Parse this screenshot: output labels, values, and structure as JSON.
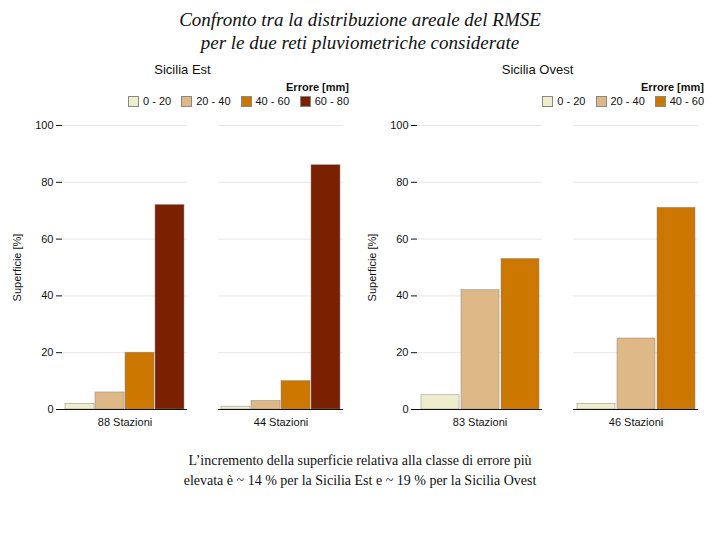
{
  "title": "Confronto tra la distribuzione areale del RMSE\nper le due reti pluviometriche considerate",
  "caption": "L’incremento della superficie relativa alla classe di errore più\nelevata è ~ 14 % per la Sicilia Est e ~ 19 % per la Sicilia Ovest",
  "chart_data": [
    {
      "type": "bar",
      "title": "Sicilia Est",
      "categories": [
        "88 Stazioni",
        "44 Stazioni"
      ],
      "series": [
        {
          "name": "0 - 20",
          "color": "#EEEECC",
          "values": [
            2,
            1
          ]
        },
        {
          "name": "20 - 40",
          "color": "#DEB887",
          "values": [
            6,
            3
          ]
        },
        {
          "name": "40 - 60",
          "color": "#CC7700",
          "values": [
            20,
            10
          ]
        },
        {
          "name": "60 - 80",
          "color": "#7B2000",
          "values": [
            72,
            86
          ]
        }
      ],
      "ylabel": "Superficie [%]",
      "ylim": [
        0,
        100
      ],
      "yticks": [
        0,
        20,
        40,
        60,
        80,
        100
      ],
      "grid": true,
      "legend": "upper right",
      "legend_title": "Errore [mm]"
    },
    {
      "type": "bar",
      "title": "Sicilia Ovest",
      "categories": [
        "83 Stazioni",
        "46 Stazioni"
      ],
      "series": [
        {
          "name": "0 - 20",
          "color": "#EEEECC",
          "values": [
            5,
            2
          ]
        },
        {
          "name": "20 - 40",
          "color": "#DEB887",
          "values": [
            42,
            25
          ]
        },
        {
          "name": "40 - 60",
          "color": "#CC7700",
          "values": [
            53,
            71
          ]
        }
      ],
      "ylabel": "Superficie [%]",
      "ylim": [
        0,
        100
      ],
      "yticks": [
        0,
        20,
        40,
        60,
        80,
        100
      ],
      "grid": true,
      "legend": "upper right",
      "legend_title": "Errore [mm]"
    }
  ]
}
